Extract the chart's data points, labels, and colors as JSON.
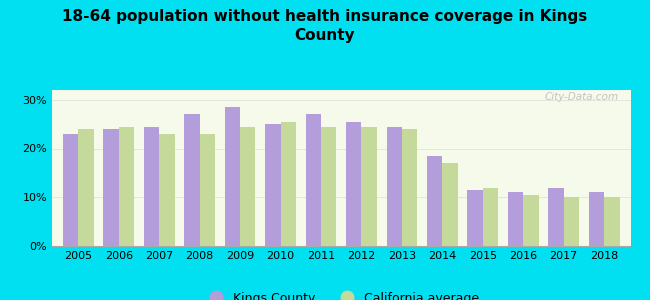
{
  "title": "18-64 population without health insurance coverage in Kings\nCounty",
  "years": [
    2005,
    2006,
    2007,
    2008,
    2009,
    2010,
    2011,
    2012,
    2013,
    2014,
    2015,
    2016,
    2017,
    2018
  ],
  "kings_county": [
    23.0,
    24.0,
    24.5,
    27.0,
    28.5,
    25.0,
    27.0,
    25.5,
    24.5,
    18.5,
    11.5,
    11.0,
    12.0,
    11.0
  ],
  "california_avg": [
    24.0,
    24.5,
    23.0,
    23.0,
    24.5,
    25.5,
    24.5,
    24.5,
    24.0,
    17.0,
    12.0,
    10.5,
    10.0,
    10.0
  ],
  "kings_color": "#b39ddb",
  "ca_color": "#c5d99a",
  "background_outer": "#00e0f0",
  "background_inner": "#f5faea",
  "ylim": [
    0,
    32
  ],
  "yticks": [
    0,
    10,
    20,
    30
  ],
  "ytick_labels": [
    "0%",
    "10%",
    "20%",
    "30%"
  ],
  "bar_width": 0.38,
  "legend_kings": "Kings County",
  "legend_ca": "California average",
  "watermark": "City-Data.com"
}
